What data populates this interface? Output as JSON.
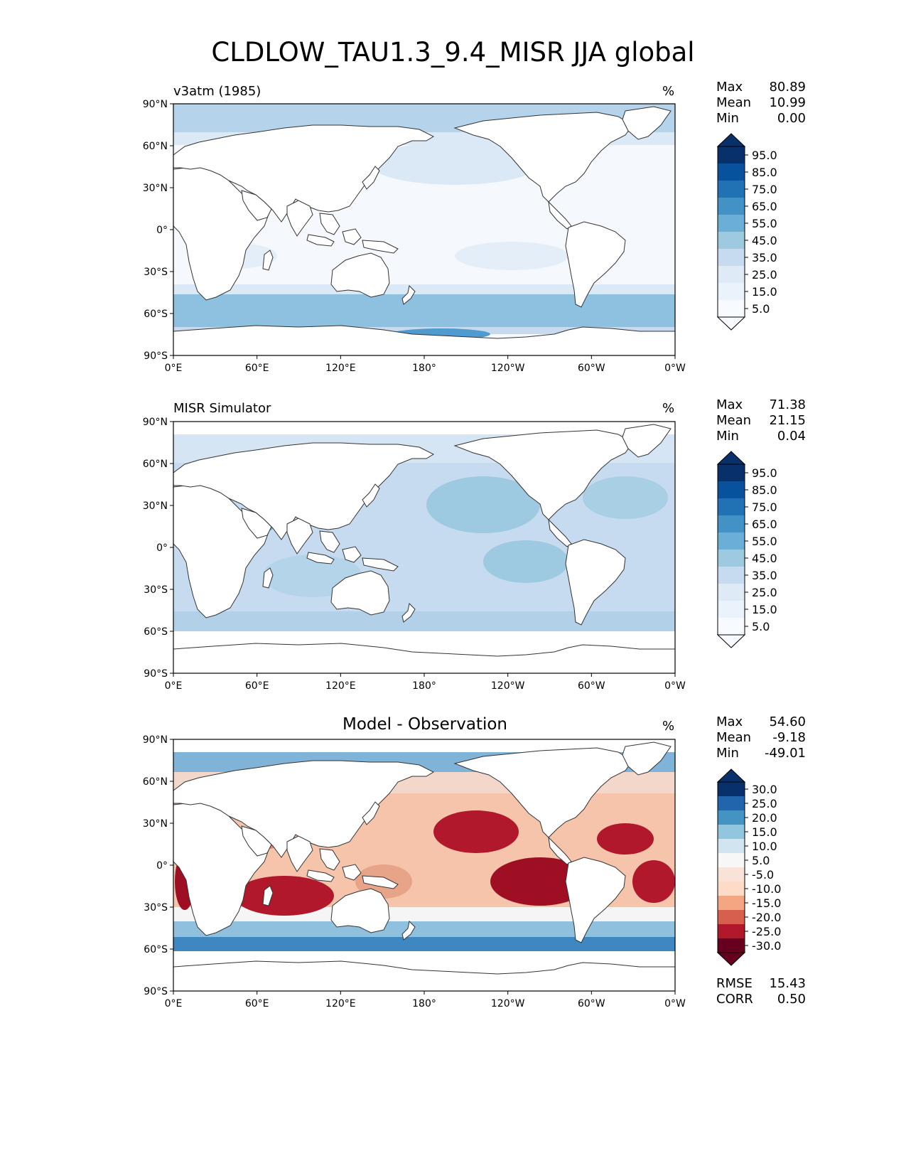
{
  "figure_title": "CLDLOW_TAU1.3_9.4_MISR JJA global",
  "panels": [
    {
      "title": "v3atm (1985)",
      "units": "%",
      "stats": [
        {
          "label": "Max",
          "value": "80.89"
        },
        {
          "label": "Mean",
          "value": "10.99"
        },
        {
          "label": "Min",
          "value": "0.00"
        }
      ],
      "colorbar_labels": [
        "95.0",
        "85.0",
        "75.0",
        "65.0",
        "55.0",
        "45.0",
        "35.0",
        "25.0",
        "15.0",
        "5.0"
      ],
      "colorbar_colors": [
        "#08306b",
        "#08519c",
        "#2171b5",
        "#4292c6",
        "#6baed6",
        "#9ecae1",
        "#c6dbef",
        "#deebf7",
        "#eaf2fb",
        "#f7fbff"
      ]
    },
    {
      "title": "MISR Simulator",
      "units": "%",
      "stats": [
        {
          "label": "Max",
          "value": "71.38"
        },
        {
          "label": "Mean",
          "value": "21.15"
        },
        {
          "label": "Min",
          "value": "0.04"
        }
      ],
      "colorbar_labels": [
        "95.0",
        "85.0",
        "75.0",
        "65.0",
        "55.0",
        "45.0",
        "35.0",
        "25.0",
        "15.0",
        "5.0"
      ],
      "colorbar_colors": [
        "#08306b",
        "#08519c",
        "#2171b5",
        "#4292c6",
        "#6baed6",
        "#9ecae1",
        "#c6dbef",
        "#deebf7",
        "#eaf2fb",
        "#f7fbff"
      ]
    },
    {
      "title": "Model - Observation",
      "units": "%",
      "stats": [
        {
          "label": "Max",
          "value": "54.60"
        },
        {
          "label": "Mean",
          "value": "-9.18"
        },
        {
          "label": "Min",
          "value": "-49.01"
        }
      ],
      "extra_stats": [
        {
          "label": "RMSE",
          "value": "15.43"
        },
        {
          "label": "CORR",
          "value": "0.50"
        }
      ],
      "colorbar_labels": [
        "30.0",
        "25.0",
        "20.0",
        "15.0",
        "10.0",
        "5.0",
        "-5.0",
        "-10.0",
        "-15.0",
        "-20.0",
        "-25.0",
        "-30.0"
      ],
      "colorbar_colors": [
        "#08306b",
        "#2166ac",
        "#4393c3",
        "#92c5de",
        "#d1e5f0",
        "#f7f7f7",
        "#f9e3d8",
        "#fddbc7",
        "#f4a582",
        "#d6604d",
        "#b2182b",
        "#67001f"
      ]
    }
  ],
  "axes": {
    "lat_ticks": [
      "90°N",
      "60°N",
      "30°N",
      "0°",
      "30°S",
      "60°S",
      "90°S"
    ],
    "lon_ticks": [
      "0°E",
      "60°E",
      "120°E",
      "180°",
      "120°W",
      "60°W",
      "0°W"
    ]
  },
  "chart_data": [
    {
      "type": "heatmap",
      "title": "v3atm (1985)",
      "projection": "PlateCarree",
      "central_longitude": 180,
      "xlim": [
        0,
        360
      ],
      "ylim": [
        -90,
        90
      ],
      "units": "%",
      "max": 80.89,
      "mean": 10.99,
      "min": 0.0,
      "levels": [
        0,
        5,
        10,
        20,
        30,
        40,
        50,
        60,
        70,
        80,
        90,
        100
      ]
    },
    {
      "type": "heatmap",
      "title": "MISR Simulator",
      "projection": "PlateCarree",
      "central_longitude": 180,
      "xlim": [
        0,
        360
      ],
      "ylim": [
        -90,
        90
      ],
      "units": "%",
      "max": 71.38,
      "mean": 21.15,
      "min": 0.04,
      "levels": [
        0,
        5,
        10,
        20,
        30,
        40,
        50,
        60,
        70,
        80,
        90,
        100
      ]
    },
    {
      "type": "heatmap",
      "title": "Model - Observation",
      "projection": "PlateCarree",
      "central_longitude": 180,
      "xlim": [
        0,
        360
      ],
      "ylim": [
        -90,
        90
      ],
      "units": "%",
      "max": 54.6,
      "mean": -9.18,
      "min": -49.01,
      "rmse": 15.43,
      "corr": 0.5,
      "levels": [
        -35,
        -30,
        -25,
        -20,
        -15,
        -10,
        -5,
        5,
        10,
        15,
        20,
        25,
        30,
        35
      ]
    }
  ]
}
